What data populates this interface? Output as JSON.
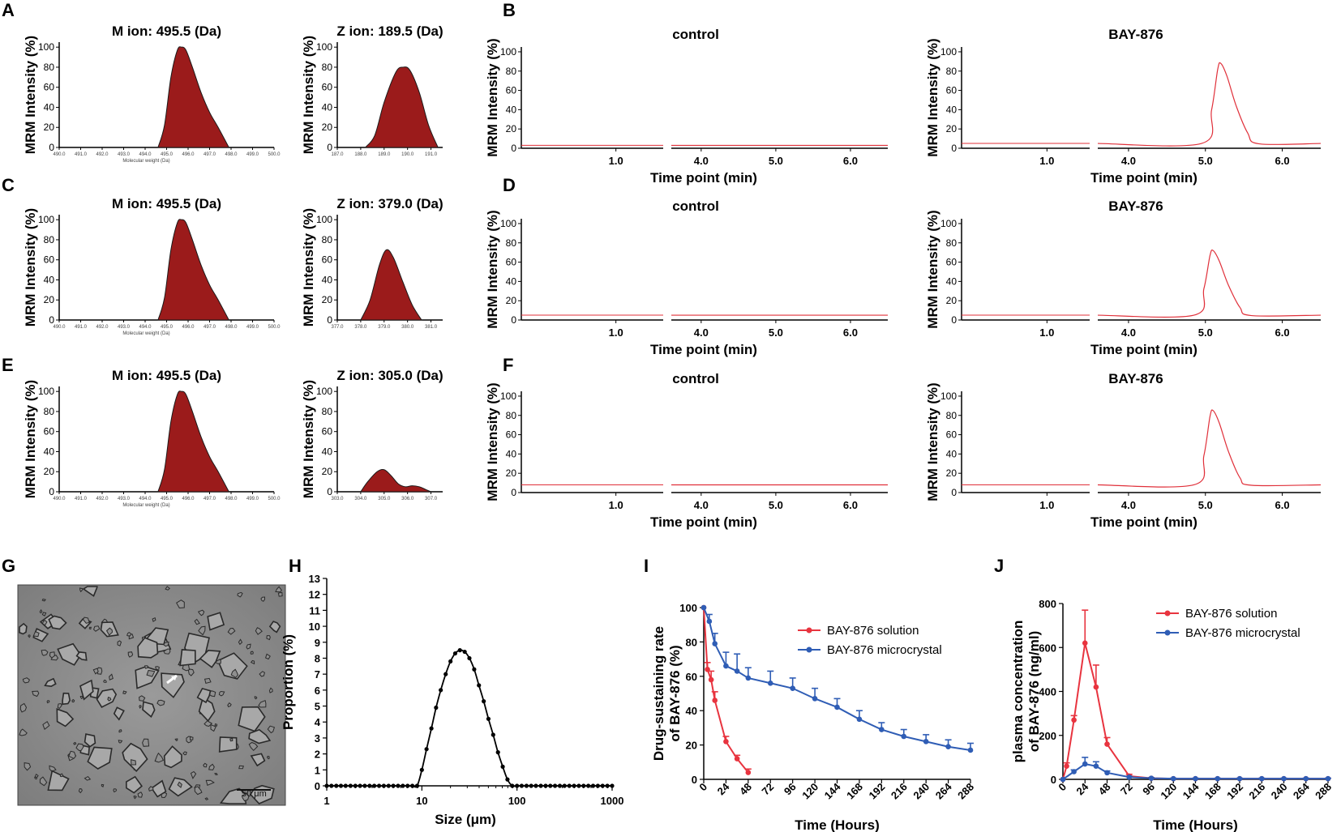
{
  "panel_labels": {
    "A": "A",
    "B": "B",
    "C": "C",
    "D": "D",
    "E": "E",
    "F": "F",
    "G": "G",
    "H": "H",
    "I": "I",
    "J": "J"
  },
  "mrm_ylabel": "MRM Intensity (%)",
  "mrm_yticks": [
    "0",
    "20",
    "40",
    "60",
    "80",
    "100"
  ],
  "mass_xlabel": "Molecular weight (Da)",
  "time_xlabel": "Time point (min)",
  "chrom_ticks": [
    "1.0",
    "4.0",
    "5.0",
    "6.0"
  ],
  "colors": {
    "peak_fill": "#9b1b1b",
    "trace": "#e0303a",
    "solution": "#e8343f",
    "microcrystal": "#2f5db5"
  },
  "scale_bar_text": "50 μm",
  "chart_data": [
    {
      "id": "A-M",
      "type": "area",
      "title": "M ion: 495.5 (Da)",
      "xlabel": "Molecular weight (Da)",
      "ylabel": "MRM Intensity (%)",
      "xticks": [
        "490.0",
        "491.0",
        "492.0",
        "493.0",
        "494.0",
        "495.0",
        "496.0",
        "497.0",
        "498.0",
        "499.0",
        "500.0"
      ],
      "xlim": [
        490,
        500
      ],
      "ylim": [
        0,
        105
      ],
      "x": [
        494.6,
        494.9,
        495.2,
        495.5,
        495.7,
        495.9,
        496.2,
        496.6,
        497.0,
        497.4,
        497.9
      ],
      "y": [
        0,
        22,
        70,
        97,
        100,
        97,
        80,
        55,
        35,
        20,
        0
      ]
    },
    {
      "id": "A-Z",
      "type": "area",
      "title": "Z ion: 189.5 (Da)",
      "ylabel": "MRM Intensity (%)",
      "xticks": [
        "187.0",
        "188.0",
        "189.0",
        "190.0",
        "191.0"
      ],
      "xlim": [
        187,
        191.5
      ],
      "ylim": [
        0,
        105
      ],
      "x": [
        188.2,
        188.6,
        189.0,
        189.5,
        189.8,
        190.1,
        190.5,
        190.9,
        191.3
      ],
      "y": [
        0,
        12,
        45,
        75,
        80,
        77,
        55,
        22,
        0
      ]
    },
    {
      "id": "C-M",
      "type": "area",
      "title": "M ion: 495.5 (Da)",
      "xlabel": "Molecular weight (Da)",
      "ylabel": "MRM Intensity (%)",
      "xticks": [
        "490.0",
        "491.0",
        "492.0",
        "493.0",
        "494.0",
        "495.0",
        "496.0",
        "497.0",
        "498.0",
        "499.0",
        "500.0"
      ],
      "xlim": [
        490,
        500
      ],
      "ylim": [
        0,
        105
      ],
      "x": [
        494.6,
        494.9,
        495.2,
        495.5,
        495.7,
        495.9,
        496.2,
        496.6,
        497.0,
        497.4,
        497.9
      ],
      "y": [
        0,
        22,
        70,
        97,
        100,
        97,
        80,
        55,
        35,
        20,
        0
      ]
    },
    {
      "id": "C-Z",
      "type": "area",
      "title": "Z ion: 379.0 (Da)",
      "ylabel": "MRM Intensity (%)",
      "xticks": [
        "377.0",
        "378.0",
        "379.0",
        "380.0",
        "381.0"
      ],
      "xlim": [
        377,
        381.5
      ],
      "ylim": [
        0,
        105
      ],
      "x": [
        378.0,
        378.4,
        378.8,
        379.1,
        379.4,
        379.8,
        380.2,
        380.6
      ],
      "y": [
        0,
        20,
        55,
        70,
        62,
        38,
        15,
        0
      ]
    },
    {
      "id": "E-M",
      "type": "area",
      "title": "M ion: 495.5 (Da)",
      "xlabel": "Molecular weight (Da)",
      "ylabel": "MRM Intensity (%)",
      "xticks": [
        "490.0",
        "491.0",
        "492.0",
        "493.0",
        "494.0",
        "495.0",
        "496.0",
        "497.0",
        "498.0",
        "499.0",
        "500.0"
      ],
      "xlim": [
        490,
        500
      ],
      "ylim": [
        0,
        105
      ],
      "x": [
        494.6,
        494.9,
        495.2,
        495.5,
        495.7,
        495.9,
        496.2,
        496.6,
        497.0,
        497.4,
        497.9
      ],
      "y": [
        0,
        22,
        70,
        97,
        100,
        97,
        80,
        55,
        35,
        20,
        0
      ]
    },
    {
      "id": "E-Z",
      "type": "area",
      "title": "Z ion: 305.0 (Da)",
      "ylabel": "MRM Intensity (%)",
      "xticks": [
        "303.0",
        "304.0",
        "305.0",
        "306.0",
        "307.0"
      ],
      "xlim": [
        303,
        307.5
      ],
      "ylim": [
        0,
        105
      ],
      "x": [
        304.0,
        304.3,
        304.7,
        305.0,
        305.3,
        305.6,
        305.9,
        306.2,
        306.5,
        306.8,
        307.0
      ],
      "y": [
        0,
        10,
        20,
        22,
        16,
        8,
        5,
        6,
        5,
        2,
        0
      ]
    },
    {
      "id": "B-control",
      "type": "line",
      "title": "control",
      "xlabel": "Time point (min)",
      "ylim": [
        0,
        105
      ],
      "peak": null,
      "baseline": 3
    },
    {
      "id": "B-BAY",
      "type": "line",
      "title": "BAY-876",
      "xlabel": "Time point (min)",
      "ylim": [
        0,
        105
      ],
      "peak": {
        "t": 5.2,
        "h": 88
      },
      "baseline": 5
    },
    {
      "id": "D-control",
      "type": "line",
      "title": "control",
      "xlabel": "Time point (min)",
      "ylim": [
        0,
        105
      ],
      "peak": null,
      "baseline": 5
    },
    {
      "id": "D-BAY",
      "type": "line",
      "title": "BAY-876",
      "xlabel": "Time point (min)",
      "ylim": [
        0,
        105
      ],
      "peak": {
        "t": 5.1,
        "h": 72
      },
      "baseline": 5
    },
    {
      "id": "F-control",
      "type": "line",
      "title": "control",
      "xlabel": "Time point (min)",
      "ylim": [
        0,
        105
      ],
      "peak": null,
      "baseline": 8
    },
    {
      "id": "F-BAY",
      "type": "line",
      "title": "BAY-876",
      "xlabel": "Time point (min)",
      "ylim": [
        0,
        105
      ],
      "peak": {
        "t": 5.1,
        "h": 85
      },
      "baseline": 8
    },
    {
      "id": "H",
      "type": "line",
      "xlabel": "Size (μm)",
      "ylabel": "Proportion (%)",
      "xscale": "log",
      "xticks": [
        "1",
        "10",
        "100",
        "1000"
      ],
      "yticks": [
        "0",
        "1",
        "2",
        "3",
        "4",
        "5",
        "6",
        "7",
        "8",
        "9",
        "10",
        "11",
        "12",
        "13"
      ],
      "xlim": [
        1,
        1000
      ],
      "ylim": [
        0,
        13
      ],
      "x": [
        1,
        1.12,
        1.26,
        1.41,
        1.58,
        1.78,
        2,
        2.24,
        2.51,
        2.82,
        3.16,
        3.55,
        3.98,
        4.47,
        5.01,
        5.62,
        6.31,
        7.08,
        7.94,
        8.91,
        10,
        11.2,
        12.6,
        14.1,
        15.8,
        17.8,
        20,
        22.4,
        25.1,
        28.2,
        31.6,
        35.5,
        39.8,
        44.7,
        50.1,
        56.2,
        63.1,
        70.8,
        79.4,
        89.1,
        100,
        112,
        126,
        141,
        158,
        178,
        200,
        224,
        251,
        282,
        316,
        355,
        398,
        447,
        501,
        562,
        631,
        708,
        794,
        891,
        1000
      ],
      "y": [
        0,
        0,
        0,
        0,
        0,
        0,
        0,
        0,
        0,
        0,
        0,
        0,
        0,
        0,
        0,
        0,
        0,
        0,
        0,
        0,
        1.0,
        2.3,
        3.6,
        4.9,
        6.0,
        7.0,
        7.8,
        8.3,
        8.5,
        8.4,
        8.0,
        7.3,
        6.3,
        5.3,
        4.2,
        3.2,
        2.1,
        1.2,
        0.4,
        0,
        0,
        0,
        0,
        0,
        0,
        0,
        0,
        0,
        0,
        0,
        0,
        0,
        0,
        0,
        0,
        0,
        0,
        0,
        0,
        0,
        0
      ]
    },
    {
      "id": "I",
      "type": "line",
      "xlabel": "Time (Hours)",
      "ylabel": "Drug-sustaining rate of BAY-876 (%)",
      "xticks": [
        "0",
        "24",
        "48",
        "72",
        "96",
        "120",
        "144",
        "168",
        "192",
        "216",
        "240",
        "264",
        "288"
      ],
      "yticks": [
        "0",
        "20",
        "40",
        "60",
        "80",
        "100"
      ],
      "xlim": [
        0,
        288
      ],
      "ylim": [
        0,
        100
      ],
      "series": [
        {
          "name": "BAY-876 solution",
          "x": [
            0,
            4,
            8,
            12,
            24,
            36,
            48
          ],
          "y": [
            100,
            64,
            58,
            46,
            22,
            12,
            4
          ],
          "err": [
            0,
            4,
            5,
            5,
            3,
            2,
            2
          ]
        },
        {
          "name": "BAY-876 microcrystal",
          "x": [
            0,
            6,
            12,
            24,
            36,
            48,
            72,
            96,
            120,
            144,
            168,
            192,
            216,
            240,
            264,
            288
          ],
          "y": [
            100,
            92,
            79,
            66,
            63,
            59,
            56,
            53,
            47,
            42,
            35,
            29,
            25,
            22,
            19,
            17
          ],
          "err": [
            0,
            4,
            6,
            8,
            10,
            6,
            7,
            6,
            6,
            5,
            5,
            4,
            4,
            4,
            4,
            4
          ]
        }
      ]
    },
    {
      "id": "J",
      "type": "line",
      "xlabel": "Time (Hours)",
      "ylabel": "plasma concentration of BAY-876 (ng/ml)",
      "xticks": [
        "0",
        "24",
        "48",
        "72",
        "96",
        "120",
        "144",
        "168",
        "192",
        "216",
        "240",
        "264",
        "288"
      ],
      "yticks": [
        "0",
        "200",
        "400",
        "600",
        "800"
      ],
      "xlim": [
        0,
        288
      ],
      "ylim": [
        0,
        800
      ],
      "series": [
        {
          "name": "BAY-876 solution",
          "x": [
            0,
            4,
            12,
            24,
            36,
            48,
            72,
            96,
            120,
            144,
            168,
            192,
            216,
            240,
            264,
            288
          ],
          "y": [
            0,
            60,
            270,
            620,
            420,
            160,
            15,
            5,
            3,
            3,
            3,
            3,
            3,
            3,
            3,
            3
          ],
          "err": [
            0,
            15,
            20,
            150,
            100,
            30,
            8,
            3,
            2,
            2,
            2,
            2,
            2,
            2,
            2,
            2
          ]
        },
        {
          "name": "BAY-876 microcrystal",
          "x": [
            0,
            12,
            24,
            36,
            48,
            72,
            96,
            120,
            144,
            168,
            192,
            216,
            240,
            264,
            288
          ],
          "y": [
            0,
            35,
            70,
            60,
            30,
            10,
            5,
            3,
            3,
            3,
            3,
            3,
            3,
            3,
            3
          ],
          "err": [
            0,
            8,
            30,
            20,
            8,
            4,
            2,
            2,
            2,
            2,
            2,
            2,
            2,
            2,
            2
          ]
        }
      ]
    }
  ]
}
